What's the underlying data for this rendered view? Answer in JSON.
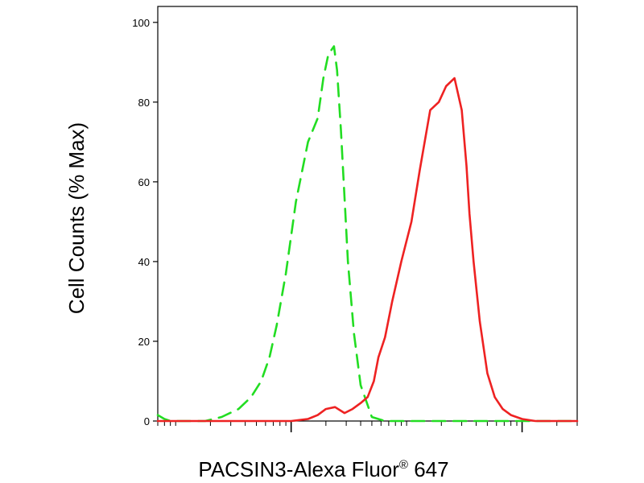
{
  "chart_data": {
    "type": "line",
    "x_scale": "log",
    "xlim": [
      0.7,
      3000
    ],
    "ylim": [
      0,
      104
    ],
    "y_ticks": [
      0,
      20,
      40,
      60,
      80,
      100
    ],
    "y_tick_labels": [
      "0",
      "20",
      "40",
      "60",
      "80",
      "100"
    ],
    "x_major_ticks": [
      10,
      1000
    ],
    "ylabel": "Cell Counts (% Max)",
    "xlabel": {
      "prefix": "PACSIN3-Alexa Fluor",
      "superscript": "®",
      "suffix": " 647"
    },
    "grid": false,
    "legend": "none",
    "series": [
      {
        "color": "#22dd22",
        "style": "dashed",
        "x": [
          0.7,
          0.8,
          0.9,
          1.2,
          1.8,
          2.5,
          3.5,
          4.5,
          5.5,
          6.5,
          7.5,
          9.0,
          11.0,
          14.0,
          17.0,
          19.0,
          21.0,
          23.5,
          25.0,
          27.0,
          29.0,
          31.0,
          35.0,
          40.0,
          50.0,
          65.0,
          100.0,
          200.0,
          3000.0
        ],
        "y": [
          1.5,
          0.5,
          0,
          0,
          0,
          1,
          3,
          6,
          10,
          16,
          24,
          37,
          55,
          70,
          76,
          86,
          92,
          94,
          88,
          73,
          56,
          40,
          22,
          9,
          1,
          0,
          0,
          0,
          0
        ]
      },
      {
        "color": "#ee2222",
        "style": "solid",
        "x": [
          0.7,
          5.0,
          10.0,
          14.0,
          17.0,
          20.0,
          24.0,
          29.0,
          34.0,
          40.0,
          46.0,
          52.0,
          57.0,
          65.0,
          75.0,
          90.0,
          110.0,
          130.0,
          160.0,
          190.0,
          220.0,
          260.0,
          300.0,
          330.0,
          350.0,
          380.0,
          430.0,
          500.0,
          580.0,
          680.0,
          800.0,
          1000.0,
          1300.0,
          1700.0,
          3000.0
        ],
        "y": [
          0,
          0,
          0,
          0.5,
          1.5,
          3,
          3.5,
          2,
          3,
          4.5,
          6,
          10,
          16,
          21,
          30,
          40,
          50,
          63,
          78,
          80,
          84,
          86,
          78,
          64,
          52,
          40,
          25,
          12,
          6,
          3,
          1.5,
          0.5,
          0,
          0,
          0
        ]
      }
    ]
  }
}
